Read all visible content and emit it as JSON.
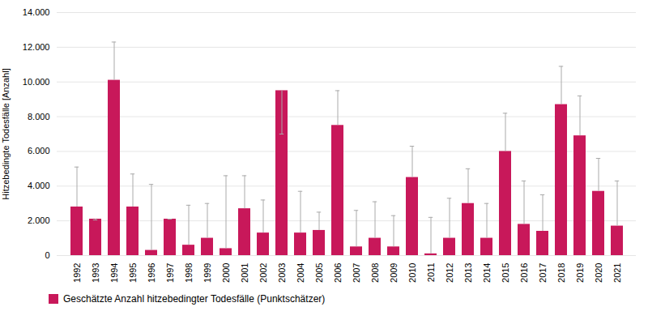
{
  "chart_data": {
    "type": "bar",
    "categories": [
      "1992",
      "1993",
      "1994",
      "1995",
      "1996",
      "1997",
      "1998",
      "1999",
      "2000",
      "2001",
      "2002",
      "2003",
      "2004",
      "2005",
      "2006",
      "2007",
      "2008",
      "2009",
      "2010",
      "2011",
      "2012",
      "2013",
      "2014",
      "2015",
      "2016",
      "2017",
      "2018",
      "2019",
      "2020",
      "2021"
    ],
    "series": [
      {
        "name": "Geschätzte Anzahl hitzebedingter Todesfälle (Punktschätzer)",
        "color": "#C8185A",
        "values": [
          2800,
          2100,
          10100,
          2800,
          300,
          2100,
          600,
          1000,
          400,
          2700,
          1300,
          9500,
          1300,
          1450,
          7500,
          500,
          1000,
          500,
          4500,
          100,
          1000,
          3000,
          1000,
          6000,
          1800,
          1400,
          8700,
          6900,
          3700,
          1700
        ],
        "err_upper": [
          5100,
          2050,
          12300,
          4700,
          4100,
          2100,
          2900,
          3000,
          4600,
          4600,
          3200,
          7000,
          3700,
          2500,
          9500,
          2600,
          3100,
          2300,
          6300,
          2200,
          3300,
          5000,
          3000,
          8200,
          4300,
          3500,
          10900,
          9200,
          5600,
          4300
        ]
      }
    ],
    "y_label": "Hitzebedingte Todesfälle [Anzahl]",
    "ylim": [
      0,
      14000
    ],
    "yticks": [
      0,
      {
        "value": 2000,
        "label": "2.000"
      },
      {
        "value": 4000,
        "label": "4.000"
      },
      {
        "value": 6000,
        "label": "6.000"
      },
      {
        "value": 8000,
        "label": "8.000"
      },
      {
        "value": 10000,
        "label": "10.000"
      },
      {
        "value": 12000,
        "label": "12.000"
      },
      {
        "value": 14000,
        "label": "14.000"
      }
    ],
    "grid": true,
    "legend": "bottom"
  }
}
